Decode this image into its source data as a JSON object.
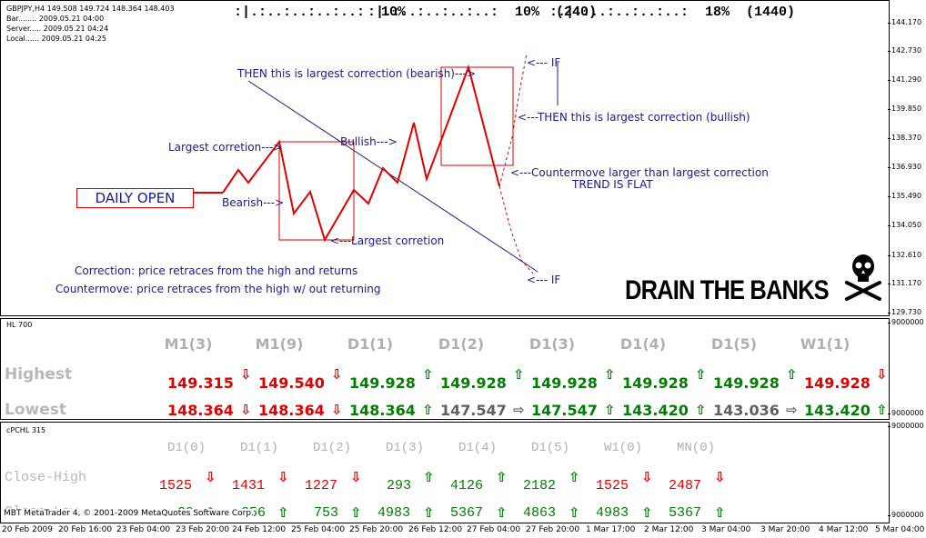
{
  "chart_info": {
    "symbol_line": "GBPJPY,H4  149.508 149.724 148.364 148.403",
    "bar_line": "Bar........ 2009.05.21 04:00",
    "server_line": "Server..... 2009.05.21 04:24",
    "local_line": "Local...... 2009.05.21 04:25"
  },
  "top_indicators": [
    {
      "bar": ":|.:..:..:..:..:",
      "value": "10%"
    },
    {
      "bar": ":|.:..:..:..:..:",
      "value": "10%  (240)"
    },
    {
      "bar": ":.|.:..:..:..:..:",
      "value": "18%  (1440)"
    }
  ],
  "main_axis": [
    "144.170",
    "142.730",
    "141.290",
    "139.850",
    "138.370",
    "136.930",
    "135.490",
    "134.050",
    "132.610",
    "131.170",
    "129.730"
  ],
  "annotations": {
    "daily_open": "DAILY OPEN",
    "largest_correction_left": "Largest corretion--->",
    "bearish": "Bearish--->",
    "bullish": "Bullish--->",
    "largest_correction_bottom": "<---Largest corretion",
    "then_bearish": "THEN this is largest correction (bearish)--->",
    "if_top": "<--- IF",
    "then_bullish": "<---THEN this is largest correction (bullish)",
    "countermove": "<---Countermove larger than largest correction",
    "trend_flat": "TREND IS FLAT",
    "if_bottom": "<--- IF",
    "correction_def": "Correction: price retraces from the high and returns",
    "countermove_def": "Countermove: price retraces from the high w/ out returning",
    "drain": "DRAIN THE BANKS",
    "skull_icon": "skull-crossbones-icon"
  },
  "hl_panel": {
    "label": "HL 700",
    "axis_top": "9000000",
    "axis_bottom": "9000000",
    "row_labels": {
      "highest": "Highest",
      "lowest": "Lowest"
    },
    "columns": [
      {
        "header": "M1(3)",
        "high": "149.315",
        "high_color": "red",
        "high_arrow": "⇩",
        "high_arrow_color": "red",
        "low": "148.364",
        "low_color": "red",
        "low_arrow": "⇩",
        "low_arrow_color": "red"
      },
      {
        "header": "M1(9)",
        "high": "149.540",
        "high_color": "red",
        "high_arrow": "⇩",
        "high_arrow_color": "red",
        "low": "148.364",
        "low_color": "red",
        "low_arrow": "⇩",
        "low_arrow_color": "red"
      },
      {
        "header": "D1(1)",
        "high": "149.928",
        "high_color": "green",
        "high_arrow": "⇧",
        "high_arrow_color": "green",
        "low": "148.364",
        "low_color": "green",
        "low_arrow": "⇧",
        "low_arrow_color": "green"
      },
      {
        "header": "D1(2)",
        "high": "149.928",
        "high_color": "green",
        "high_arrow": "⇧",
        "high_arrow_color": "green",
        "low": "147.547",
        "low_color": "grey",
        "low_arrow": "⇨",
        "low_arrow_color": "grey"
      },
      {
        "header": "D1(3)",
        "high": "149.928",
        "high_color": "green",
        "high_arrow": "⇧",
        "high_arrow_color": "green",
        "low": "147.547",
        "low_color": "green",
        "low_arrow": "⇧",
        "low_arrow_color": "green"
      },
      {
        "header": "D1(4)",
        "high": "149.928",
        "high_color": "green",
        "high_arrow": "⇧",
        "high_arrow_color": "green",
        "low": "143.420",
        "low_color": "green",
        "low_arrow": "⇧",
        "low_arrow_color": "green"
      },
      {
        "header": "D1(5)",
        "high": "149.928",
        "high_color": "green",
        "high_arrow": "⇧",
        "high_arrow_color": "green",
        "low": "143.036",
        "low_color": "grey",
        "low_arrow": "⇨",
        "low_arrow_color": "grey"
      },
      {
        "header": "W1(1)",
        "high": "149.928",
        "high_color": "red",
        "high_arrow": "⇩",
        "high_arrow_color": "red",
        "low": "143.420",
        "low_color": "green",
        "low_arrow": "⇧",
        "low_arrow_color": "green"
      }
    ]
  },
  "cpchl_panel": {
    "label": "cPCHL 315",
    "axis_top": "9000000",
    "axis_bottom": "9000000",
    "row_labels": {
      "close_high": "Close-High",
      "close_low": "Close-Low"
    },
    "columns": [
      {
        "header": "D1(0)",
        "ch": "1525",
        "ch_color": "red",
        "ch_arrow": "⇩",
        "cl": "29",
        "cl_color": "green",
        "cl_arrow": "⇧"
      },
      {
        "header": "D1(1)",
        "ch": "1431",
        "ch_color": "red",
        "ch_arrow": "⇩",
        "cl": "856",
        "cl_color": "green",
        "cl_arrow": "⇧"
      },
      {
        "header": "D1(2)",
        "ch": "1227",
        "ch_color": "red",
        "ch_arrow": "⇩",
        "cl": "753",
        "cl_color": "green",
        "cl_arrow": "⇧"
      },
      {
        "header": "D1(3)",
        "ch": "293",
        "ch_color": "green",
        "ch_arrow": "⇧",
        "cl": "4983",
        "cl_color": "green",
        "cl_arrow": "⇧"
      },
      {
        "header": "D1(4)",
        "ch": "4126",
        "ch_color": "green",
        "ch_arrow": "⇧",
        "cl": "5367",
        "cl_color": "green",
        "cl_arrow": "⇧"
      },
      {
        "header": "D1(5)",
        "ch": "2182",
        "ch_color": "green",
        "ch_arrow": "⇧",
        "cl": "4863",
        "cl_color": "green",
        "cl_arrow": "⇧"
      },
      {
        "header": "W1(0)",
        "ch": "1525",
        "ch_color": "red",
        "ch_arrow": "⇩",
        "cl": "4983",
        "cl_color": "green",
        "cl_arrow": "⇧"
      },
      {
        "header": "MN(0)",
        "ch": "2487",
        "ch_color": "red",
        "ch_arrow": "⇩",
        "cl": "5367",
        "cl_color": "green",
        "cl_arrow": "⇧"
      }
    ]
  },
  "copyright": "MBT MetaTrader 4, © 2001-2009 MetaQuotes Software Corp.",
  "time_axis": [
    "20 Feb 2009",
    "20 Feb 16:00",
    "23 Feb 04:00",
    "23 Feb 20:00",
    "24 Feb 12:00",
    "25 Feb 04:00",
    "25 Feb 20:00",
    "26 Feb 12:00",
    "27 Feb 04:00",
    "27 Feb 20:00",
    "1 Mar 17:00",
    "2 Mar 12:00",
    "3 Mar 04:00",
    "3 Mar 20:00",
    "4 Mar 12:00",
    "5 Mar 04:00",
    "5 Mar 20:00"
  ]
}
